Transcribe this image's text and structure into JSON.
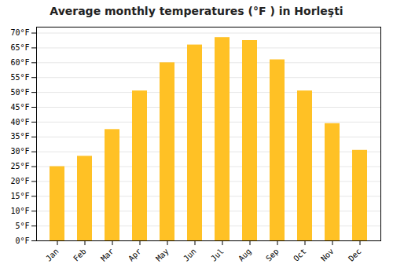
{
  "chart_data": {
    "type": "bar",
    "title": "Average monthly temperatures (°F ) in Horleşti",
    "categories": [
      "Jan",
      "Feb",
      "Mar",
      "Apr",
      "May",
      "Jun",
      "Jul",
      "Aug",
      "Sep",
      "Oct",
      "Nov",
      "Dec"
    ],
    "values": [
      25,
      28.5,
      37.5,
      50.5,
      60,
      66,
      68.5,
      67.5,
      61,
      50.5,
      39.5,
      30.5
    ],
    "color": "#FFC125",
    "ylim": [
      0,
      72
    ],
    "yticks": [
      {
        "value": 0,
        "label": "0°F"
      },
      {
        "value": 5,
        "label": "5°F"
      },
      {
        "value": 10,
        "label": "10°F"
      },
      {
        "value": 15,
        "label": "15°F"
      },
      {
        "value": 20,
        "label": "20°F"
      },
      {
        "value": 25,
        "label": "25°F"
      },
      {
        "value": 30,
        "label": "30°F"
      },
      {
        "value": 35,
        "label": "35°F"
      },
      {
        "value": 40,
        "label": "40°F"
      },
      {
        "value": 45,
        "label": "45°F"
      },
      {
        "value": 50,
        "label": "50°F"
      },
      {
        "value": 55,
        "label": "55°F"
      },
      {
        "value": 60,
        "label": "60°F"
      },
      {
        "value": 65,
        "label": "65°F"
      },
      {
        "value": 70,
        "label": "70°F"
      }
    ],
    "grid": true
  }
}
